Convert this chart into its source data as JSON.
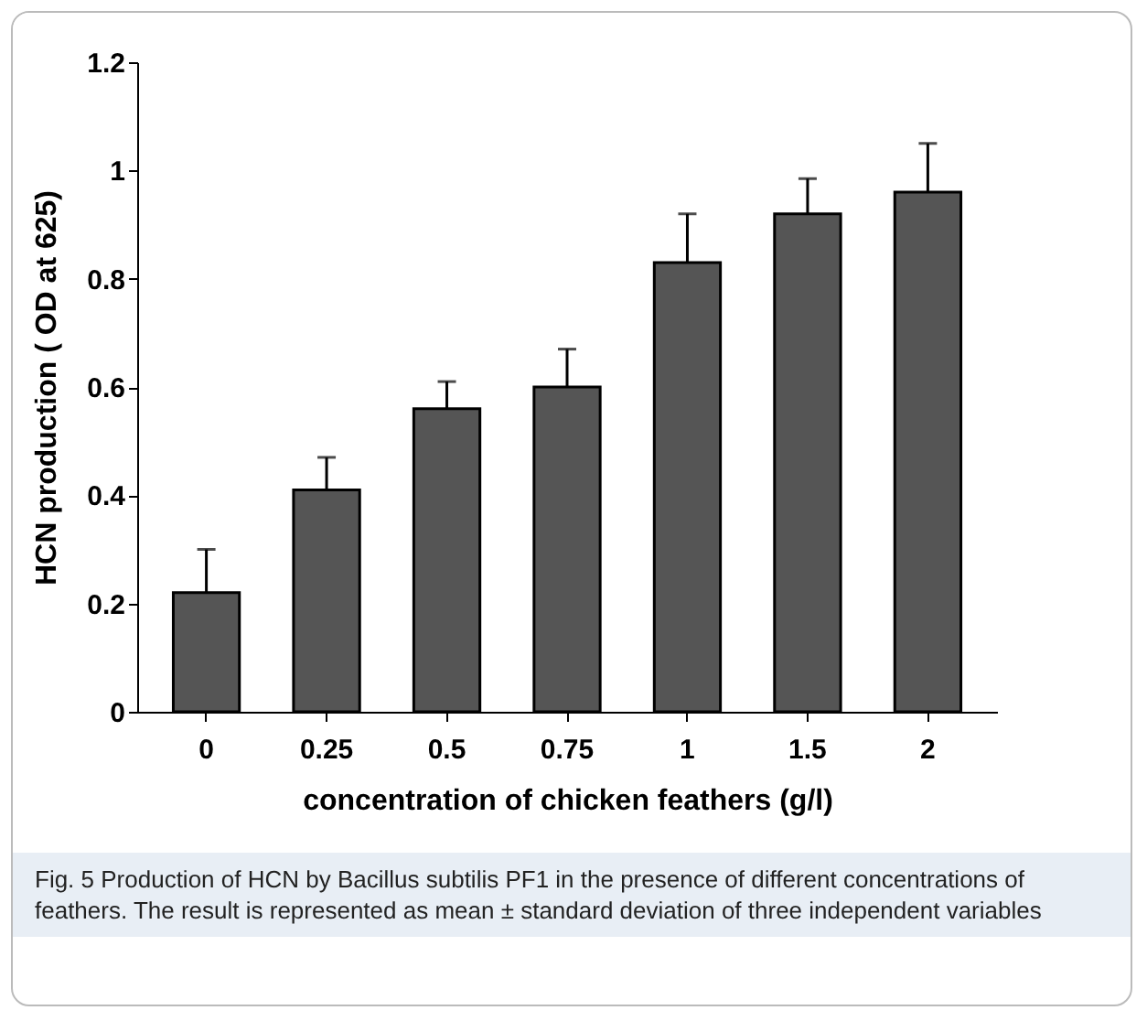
{
  "chart_data": {
    "type": "bar",
    "xlabel": "concentration of chicken feathers (g/l)",
    "ylabel": "HCN production ( OD at 625)",
    "categories": [
      "0",
      "0.25",
      "0.5",
      "0.75",
      "1",
      "1.5",
      "2"
    ],
    "values": [
      0.22,
      0.41,
      0.56,
      0.6,
      0.83,
      0.92,
      0.96
    ],
    "errors": [
      0.08,
      0.06,
      0.05,
      0.07,
      0.09,
      0.065,
      0.09
    ],
    "color": "#555555",
    "ylim": [
      0,
      1.2
    ],
    "yticks": [
      0,
      0.2,
      0.4,
      0.6,
      0.8,
      1,
      1.2
    ],
    "grid": false,
    "annotations": [
      "Fig. 5  Production of HCN by Bacillus subtilis PF1 in the presence of different concentrations of feathers. The result is represented as mean ± standard deviation of three independent variables"
    ]
  }
}
